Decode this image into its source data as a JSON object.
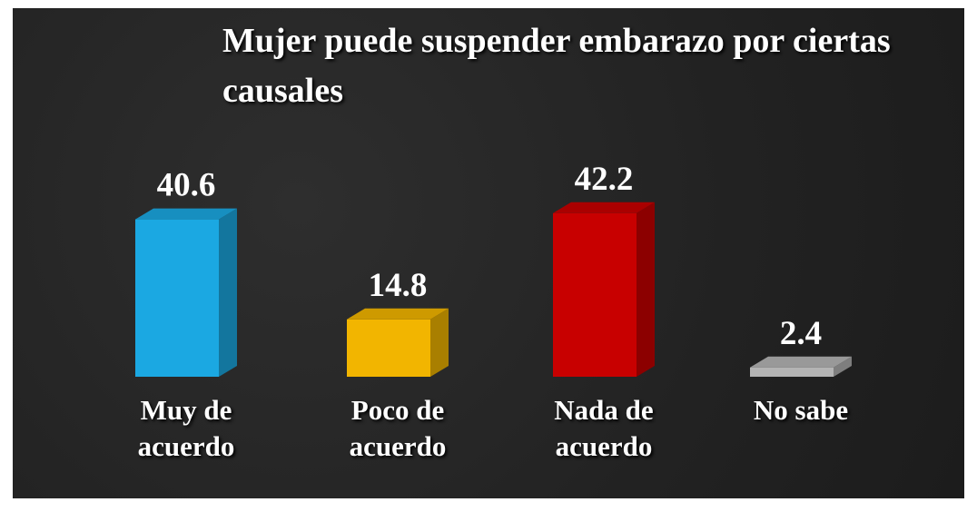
{
  "chart_data": {
    "type": "bar3d",
    "title": "Mujer puede suspender embarazo por ciertas causales",
    "categories": [
      "Muy de acuerdo",
      "Poco de acuerdo",
      "Nada de acuerdo",
      "No sabe"
    ],
    "values": [
      40.6,
      14.8,
      42.2,
      2.4
    ],
    "colors": [
      "#1ba8e2",
      "#f2b500",
      "#c80000",
      "#b4b4b4"
    ]
  }
}
